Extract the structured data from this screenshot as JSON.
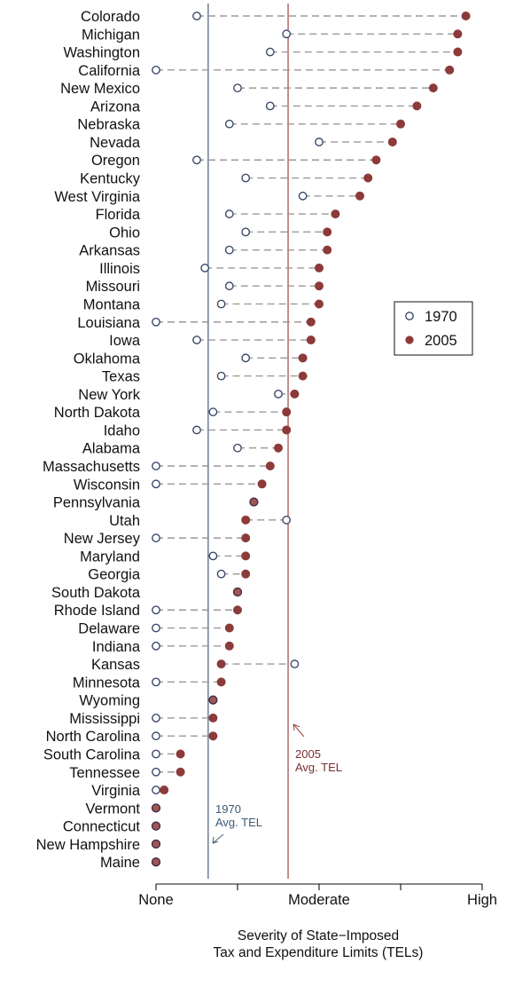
{
  "chart_data": {
    "type": "scatter",
    "xlabel_lines": [
      "Severity of State−Imposed",
      "Tax and Expenditure Limits (TELs)"
    ],
    "xlim": [
      0,
      20
    ],
    "x_ticks": [
      0,
      5,
      10,
      15,
      20
    ],
    "x_tick_labels": [
      {
        "value": 0,
        "label": "None"
      },
      {
        "value": 10,
        "label": "Moderate"
      },
      {
        "value": 20,
        "label": "High"
      }
    ],
    "grid": false,
    "legend": {
      "placement": "right",
      "entries": [
        "1970",
        "2005"
      ]
    },
    "series": [
      {
        "name": "1970",
        "marker": "hollow-circle",
        "color": "#3b4a6b"
      },
      {
        "name": "2005",
        "marker": "filled-circle",
        "color": "#8c3a3a"
      }
    ],
    "reference_lines": [
      {
        "label_lines": [
          "1970",
          "Avg. TEL"
        ],
        "value": 3.2,
        "color": "#4a5d75"
      },
      {
        "label_lines": [
          "2005",
          "Avg. TEL"
        ],
        "value": 8.1,
        "color": "#9c4545"
      }
    ],
    "states": [
      {
        "name": "Colorado",
        "v1970": 2.5,
        "v2005": 19.0
      },
      {
        "name": "Michigan",
        "v1970": 8.0,
        "v2005": 18.5
      },
      {
        "name": "Washington",
        "v1970": 7.0,
        "v2005": 18.5
      },
      {
        "name": "California",
        "v1970": 0.0,
        "v2005": 18.0
      },
      {
        "name": "New Mexico",
        "v1970": 5.0,
        "v2005": 17.0
      },
      {
        "name": "Arizona",
        "v1970": 7.0,
        "v2005": 16.0
      },
      {
        "name": "Nebraska",
        "v1970": 4.5,
        "v2005": 15.0
      },
      {
        "name": "Nevada",
        "v1970": 10.0,
        "v2005": 14.5
      },
      {
        "name": "Oregon",
        "v1970": 2.5,
        "v2005": 13.5
      },
      {
        "name": "Kentucky",
        "v1970": 5.5,
        "v2005": 13.0
      },
      {
        "name": "West Virginia",
        "v1970": 9.0,
        "v2005": 12.5
      },
      {
        "name": "Florida",
        "v1970": 4.5,
        "v2005": 11.0
      },
      {
        "name": "Ohio",
        "v1970": 5.5,
        "v2005": 10.5
      },
      {
        "name": "Arkansas",
        "v1970": 4.5,
        "v2005": 10.5
      },
      {
        "name": "Illinois",
        "v1970": 3.0,
        "v2005": 10.0
      },
      {
        "name": "Missouri",
        "v1970": 4.5,
        "v2005": 10.0
      },
      {
        "name": "Montana",
        "v1970": 4.0,
        "v2005": 10.0
      },
      {
        "name": "Louisiana",
        "v1970": 0.0,
        "v2005": 9.5
      },
      {
        "name": "Iowa",
        "v1970": 2.5,
        "v2005": 9.5
      },
      {
        "name": "Oklahoma",
        "v1970": 5.5,
        "v2005": 9.0
      },
      {
        "name": "Texas",
        "v1970": 4.0,
        "v2005": 9.0
      },
      {
        "name": "New York",
        "v1970": 7.5,
        "v2005": 8.5
      },
      {
        "name": "North Dakota",
        "v1970": 3.5,
        "v2005": 8.0
      },
      {
        "name": "Idaho",
        "v1970": 2.5,
        "v2005": 8.0
      },
      {
        "name": "Alabama",
        "v1970": 5.0,
        "v2005": 7.5
      },
      {
        "name": "Massachusetts",
        "v1970": 0.0,
        "v2005": 7.0
      },
      {
        "name": "Wisconsin",
        "v1970": 0.0,
        "v2005": 6.5
      },
      {
        "name": "Pennsylvania",
        "v1970": 6.0,
        "v2005": 6.0
      },
      {
        "name": "Utah",
        "v1970": 8.0,
        "v2005": 5.5
      },
      {
        "name": "New Jersey",
        "v1970": 0.0,
        "v2005": 5.5
      },
      {
        "name": "Maryland",
        "v1970": 3.5,
        "v2005": 5.5
      },
      {
        "name": "Georgia",
        "v1970": 4.0,
        "v2005": 5.5
      },
      {
        "name": "South Dakota",
        "v1970": 5.0,
        "v2005": 5.0
      },
      {
        "name": "Rhode Island",
        "v1970": 0.0,
        "v2005": 5.0
      },
      {
        "name": "Delaware",
        "v1970": 0.0,
        "v2005": 4.5
      },
      {
        "name": "Indiana",
        "v1970": 0.0,
        "v2005": 4.5
      },
      {
        "name": "Kansas",
        "v1970": 8.5,
        "v2005": 4.0
      },
      {
        "name": "Minnesota",
        "v1970": 0.0,
        "v2005": 4.0
      },
      {
        "name": "Wyoming",
        "v1970": 3.5,
        "v2005": 3.5
      },
      {
        "name": "Mississippi",
        "v1970": 0.0,
        "v2005": 3.5
      },
      {
        "name": "North Carolina",
        "v1970": 0.0,
        "v2005": 3.5
      },
      {
        "name": "South Carolina",
        "v1970": 0.0,
        "v2005": 1.5
      },
      {
        "name": "Tennessee",
        "v1970": 0.0,
        "v2005": 1.5
      },
      {
        "name": "Virginia",
        "v1970": 0.0,
        "v2005": 0.5
      },
      {
        "name": "Vermont",
        "v1970": 0.0,
        "v2005": 0.0
      },
      {
        "name": "Connecticut",
        "v1970": 0.0,
        "v2005": 0.0
      },
      {
        "name": "New Hampshire",
        "v1970": 0.0,
        "v2005": 0.0
      },
      {
        "name": "Maine",
        "v1970": 0.0,
        "v2005": 0.0
      }
    ]
  }
}
